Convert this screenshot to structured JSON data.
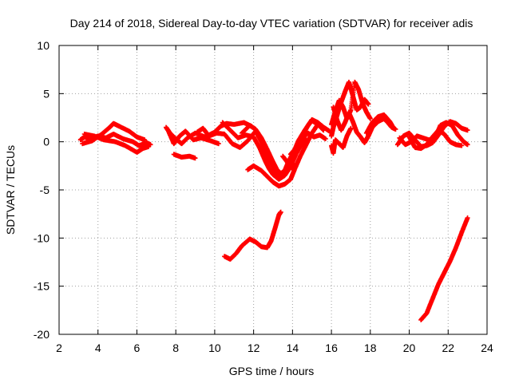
{
  "chart_data": {
    "type": "scatter",
    "title": "Day 214 of 2018, Sidereal Day-to-day VTEC variation (SDTVAR) for receiver adis",
    "xlabel": "GPS time / hours",
    "ylabel": "SDTVAR / TECUs",
    "xlim": [
      2,
      24
    ],
    "ylim": [
      -20,
      10
    ],
    "xticks": [
      2,
      4,
      6,
      8,
      10,
      12,
      14,
      16,
      18,
      20,
      22,
      24
    ],
    "yticks": [
      -20,
      -15,
      -10,
      -5,
      0,
      5,
      10
    ],
    "grid": true,
    "marker": "+",
    "series": [
      {
        "name": "SDTVAR",
        "color": "#ff0000",
        "tracks": [
          [
            [
              3.1,
              0.2
            ],
            [
              3.3,
              0.5
            ],
            [
              3.6,
              0.3
            ],
            [
              4.0,
              0.6
            ],
            [
              4.4,
              0.4
            ],
            [
              4.8,
              0.8
            ],
            [
              5.3,
              0.3
            ],
            [
              5.8,
              0.0
            ],
            [
              6.1,
              -0.4
            ],
            [
              6.5,
              -0.1
            ],
            [
              6.7,
              -0.3
            ]
          ],
          [
            [
              3.2,
              -0.2
            ],
            [
              3.7,
              0.1
            ],
            [
              4.2,
              0.8
            ],
            [
              4.6,
              1.5
            ],
            [
              4.8,
              1.9
            ],
            [
              5.1,
              1.6
            ],
            [
              5.6,
              1.1
            ],
            [
              6.0,
              0.5
            ],
            [
              6.4,
              0.2
            ]
          ],
          [
            [
              3.3,
              0.8
            ],
            [
              3.8,
              0.6
            ],
            [
              4.3,
              0.2
            ],
            [
              4.9,
              0.0
            ],
            [
              5.4,
              -0.4
            ],
            [
              6.0,
              -1.1
            ],
            [
              6.3,
              -0.7
            ],
            [
              6.6,
              -0.5
            ]
          ],
          [
            [
              7.5,
              1.5
            ],
            [
              7.7,
              0.9
            ],
            [
              8.0,
              0.3
            ],
            [
              8.3,
              -0.2
            ],
            [
              8.6,
              0.4
            ],
            [
              9.0,
              0.9
            ],
            [
              9.5,
              0.5
            ],
            [
              10.0,
              1.0
            ],
            [
              10.3,
              1.6
            ],
            [
              10.6,
              1.9
            ],
            [
              11.0,
              1.8
            ],
            [
              11.5,
              2.0
            ],
            [
              11.9,
              1.6
            ]
          ],
          [
            [
              7.6,
              1.2
            ],
            [
              7.9,
              -0.2
            ],
            [
              8.2,
              0.6
            ],
            [
              8.5,
              1.1
            ],
            [
              8.9,
              0.2
            ],
            [
              9.3,
              0.4
            ],
            [
              9.8,
              0.1
            ],
            [
              10.2,
              -0.2
            ]
          ],
          [
            [
              7.9,
              -1.3
            ],
            [
              8.3,
              -1.6
            ],
            [
              8.7,
              -1.5
            ],
            [
              9.0,
              -1.7
            ]
          ],
          [
            [
              9.1,
              1.0
            ],
            [
              9.4,
              1.4
            ],
            [
              9.7,
              0.6
            ],
            [
              10.1,
              0.9
            ],
            [
              10.5,
              0.8
            ],
            [
              10.9,
              -0.2
            ],
            [
              11.3,
              -0.6
            ],
            [
              11.7,
              0.1
            ],
            [
              12.1,
              1.1
            ],
            [
              12.4,
              0.0
            ],
            [
              12.7,
              -1.5
            ],
            [
              12.9,
              -2.2
            ],
            [
              13.1,
              -3.0
            ],
            [
              13.3,
              -3.6
            ],
            [
              13.6,
              -3.2
            ],
            [
              13.9,
              -1.8
            ],
            [
              14.2,
              -0.5
            ],
            [
              14.5,
              0.4
            ],
            [
              14.8,
              0.9
            ],
            [
              15.1,
              0.5
            ],
            [
              15.4,
              0.7
            ],
            [
              15.7,
              0.3
            ]
          ],
          [
            [
              10.4,
              2.0
            ],
            [
              10.8,
              1.2
            ],
            [
              11.2,
              0.4
            ],
            [
              11.6,
              0.7
            ],
            [
              12.0,
              0.5
            ],
            [
              12.3,
              -0.6
            ],
            [
              12.6,
              -2.0
            ],
            [
              12.8,
              -2.8
            ],
            [
              13.0,
              -3.4
            ],
            [
              13.3,
              -3.9
            ],
            [
              13.6,
              -3.5
            ],
            [
              13.9,
              -2.6
            ],
            [
              14.2,
              -1.2
            ],
            [
              14.5,
              -0.2
            ],
            [
              14.7,
              0.3
            ]
          ],
          [
            [
              11.4,
              0.9
            ],
            [
              11.8,
              1.7
            ],
            [
              12.1,
              1.3
            ],
            [
              12.4,
              0.4
            ],
            [
              12.7,
              -0.8
            ],
            [
              13.0,
              -2.1
            ],
            [
              13.2,
              -2.9
            ],
            [
              13.4,
              -3.3
            ],
            [
              13.6,
              -3.0
            ],
            [
              13.8,
              -2.0
            ],
            [
              14.1,
              -0.9
            ],
            [
              14.3,
              0.1
            ],
            [
              14.6,
              1.1
            ],
            [
              14.8,
              1.7
            ],
            [
              15.0,
              2.2
            ],
            [
              15.3,
              1.8
            ],
            [
              15.6,
              1.2
            ]
          ],
          [
            [
              11.7,
              -2.9
            ],
            [
              12.0,
              -2.5
            ],
            [
              12.4,
              -3.0
            ],
            [
              12.7,
              -3.6
            ],
            [
              13.0,
              -4.2
            ],
            [
              13.3,
              -4.6
            ],
            [
              13.6,
              -4.4
            ],
            [
              13.9,
              -3.9
            ],
            [
              14.1,
              -2.9
            ],
            [
              14.4,
              -1.5
            ],
            [
              14.7,
              -0.3
            ],
            [
              15.0,
              0.9
            ],
            [
              15.3,
              1.8
            ],
            [
              15.6,
              1.4
            ]
          ],
          [
            [
              13.9,
              -1.3
            ],
            [
              14.2,
              -0.6
            ],
            [
              14.5,
              0.6
            ],
            [
              14.8,
              1.7
            ],
            [
              15.0,
              2.3
            ],
            [
              15.3,
              2.0
            ],
            [
              15.6,
              1.5
            ],
            [
              15.9,
              1.1
            ]
          ],
          [
            [
              13.5,
              -1.5
            ],
            [
              13.8,
              -2.3
            ],
            [
              14.0,
              -2.8
            ],
            [
              14.2,
              -2.3
            ]
          ],
          [
            [
              16.0,
              0.6
            ],
            [
              16.1,
              1.5
            ],
            [
              16.3,
              2.8
            ],
            [
              16.5,
              4.1
            ],
            [
              16.7,
              5.2
            ],
            [
              16.9,
              6.2
            ],
            [
              17.1,
              4.8
            ],
            [
              17.3,
              3.3
            ],
            [
              17.5,
              3.6
            ],
            [
              17.7,
              4.4
            ],
            [
              17.9,
              3.9
            ]
          ],
          [
            [
              16.0,
              1.8
            ],
            [
              16.2,
              3.2
            ],
            [
              16.4,
              4.3
            ],
            [
              16.6,
              3.6
            ],
            [
              16.8,
              2.4
            ],
            [
              17.0,
              3.3
            ],
            [
              17.2,
              6.2
            ],
            [
              17.4,
              5.4
            ],
            [
              17.6,
              4.0
            ],
            [
              17.8,
              3.1
            ],
            [
              18.0,
              2.4
            ]
          ],
          [
            [
              16.1,
              3.6
            ],
            [
              16.3,
              2.2
            ],
            [
              16.5,
              1.2
            ],
            [
              16.7,
              2.0
            ],
            [
              16.9,
              3.0
            ],
            [
              17.1,
              2.1
            ],
            [
              17.3,
              1.0
            ],
            [
              17.5,
              0.5
            ],
            [
              17.7,
              -0.1
            ],
            [
              17.9,
              0.6
            ],
            [
              18.1,
              1.5
            ],
            [
              18.4,
              2.1
            ],
            [
              18.7,
              2.4
            ],
            [
              18.9,
              2.0
            ],
            [
              19.1,
              1.5
            ],
            [
              19.3,
              1.3
            ]
          ],
          [
            [
              16.0,
              -0.4
            ],
            [
              16.1,
              -1.2
            ],
            [
              16.2,
              0.2
            ],
            [
              16.4,
              -0.2
            ],
            [
              16.6,
              -0.6
            ],
            [
              16.8,
              0.6
            ],
            [
              17.0,
              1.4
            ]
          ],
          [
            [
              17.8,
              0.9
            ],
            [
              18.1,
              2.0
            ],
            [
              18.4,
              2.6
            ],
            [
              18.7,
              2.8
            ],
            [
              19.0,
              2.1
            ],
            [
              19.2,
              1.4
            ]
          ],
          [
            [
              19.4,
              -0.3
            ],
            [
              19.7,
              0.6
            ],
            [
              20.0,
              0.9
            ],
            [
              20.3,
              0.2
            ],
            [
              20.6,
              -0.5
            ],
            [
              20.9,
              -0.4
            ],
            [
              21.2,
              -0.1
            ],
            [
              21.5,
              0.7
            ],
            [
              21.8,
              1.6
            ],
            [
              22.1,
              2.1
            ],
            [
              22.4,
              1.9
            ],
            [
              22.7,
              1.4
            ],
            [
              23.0,
              1.2
            ]
          ],
          [
            [
              19.5,
              0.4
            ],
            [
              19.8,
              -0.3
            ],
            [
              20.1,
              0.0
            ],
            [
              20.4,
              0.6
            ],
            [
              20.7,
              0.4
            ],
            [
              21.0,
              0.2
            ],
            [
              21.3,
              0.3
            ],
            [
              21.6,
              1.7
            ],
            [
              21.9,
              2.0
            ],
            [
              22.2,
              1.7
            ],
            [
              22.5,
              0.7
            ],
            [
              22.8,
              0.0
            ],
            [
              23.0,
              -0.3
            ]
          ],
          [
            [
              20.0,
              0.5
            ],
            [
              20.3,
              -0.6
            ],
            [
              20.6,
              -0.7
            ],
            [
              20.9,
              -0.3
            ],
            [
              21.2,
              0.5
            ],
            [
              21.5,
              1.2
            ],
            [
              21.8,
              0.8
            ],
            [
              22.1,
              0.0
            ],
            [
              22.4,
              -0.3
            ],
            [
              22.7,
              -0.4
            ]
          ],
          [
            [
              10.5,
              -11.9
            ],
            [
              10.8,
              -12.2
            ],
            [
              11.1,
              -11.6
            ],
            [
              11.4,
              -10.8
            ],
            [
              11.8,
              -10.1
            ],
            [
              12.1,
              -10.4
            ],
            [
              12.4,
              -10.9
            ],
            [
              12.7,
              -11.0
            ],
            [
              12.9,
              -10.3
            ],
            [
              13.1,
              -9.0
            ],
            [
              13.3,
              -7.6
            ],
            [
              13.4,
              -7.3
            ]
          ],
          [
            [
              20.6,
              -18.5
            ],
            [
              20.9,
              -17.8
            ],
            [
              21.2,
              -16.3
            ],
            [
              21.5,
              -14.8
            ],
            [
              21.8,
              -13.6
            ],
            [
              22.1,
              -12.4
            ],
            [
              22.4,
              -11.0
            ],
            [
              22.7,
              -9.4
            ],
            [
              23.0,
              -7.9
            ]
          ]
        ]
      }
    ]
  }
}
